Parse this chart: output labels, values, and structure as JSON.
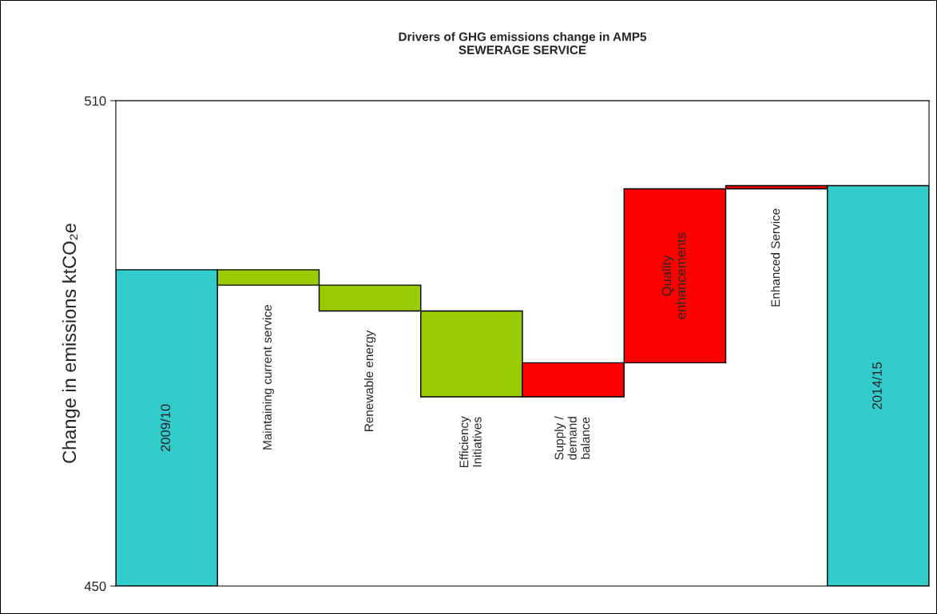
{
  "chart_data": {
    "type": "bar",
    "title": "Drivers of GHG emissions change in AMP5\nSEWERAGE SERVICE",
    "ylabel": "Change in emissions ktCO₂e",
    "categories": [
      "2009/10",
      "Maintaining current service",
      "Renewable energy",
      "Efficiency\nInitiatives",
      "Supply /\ndemand\nbalance",
      "Quality\nenhancements",
      "Enhanced Service",
      "2014/15"
    ],
    "base": [
      450,
      489.1,
      487.2,
      484.0,
      473.4,
      477.6,
      499.1,
      450
    ],
    "values": [
      39.1,
      -1.9,
      -3.2,
      -10.6,
      4.2,
      21.5,
      0.4,
      49.5
    ],
    "colors": [
      "#33cccc",
      "#99cc00",
      "#99cc00",
      "#99cc00",
      "#ff0000",
      "#ff0000",
      "#ff0000",
      "#33cccc"
    ],
    "ylim": [
      450,
      510
    ],
    "yticks": [
      450,
      510
    ],
    "grid": false
  }
}
